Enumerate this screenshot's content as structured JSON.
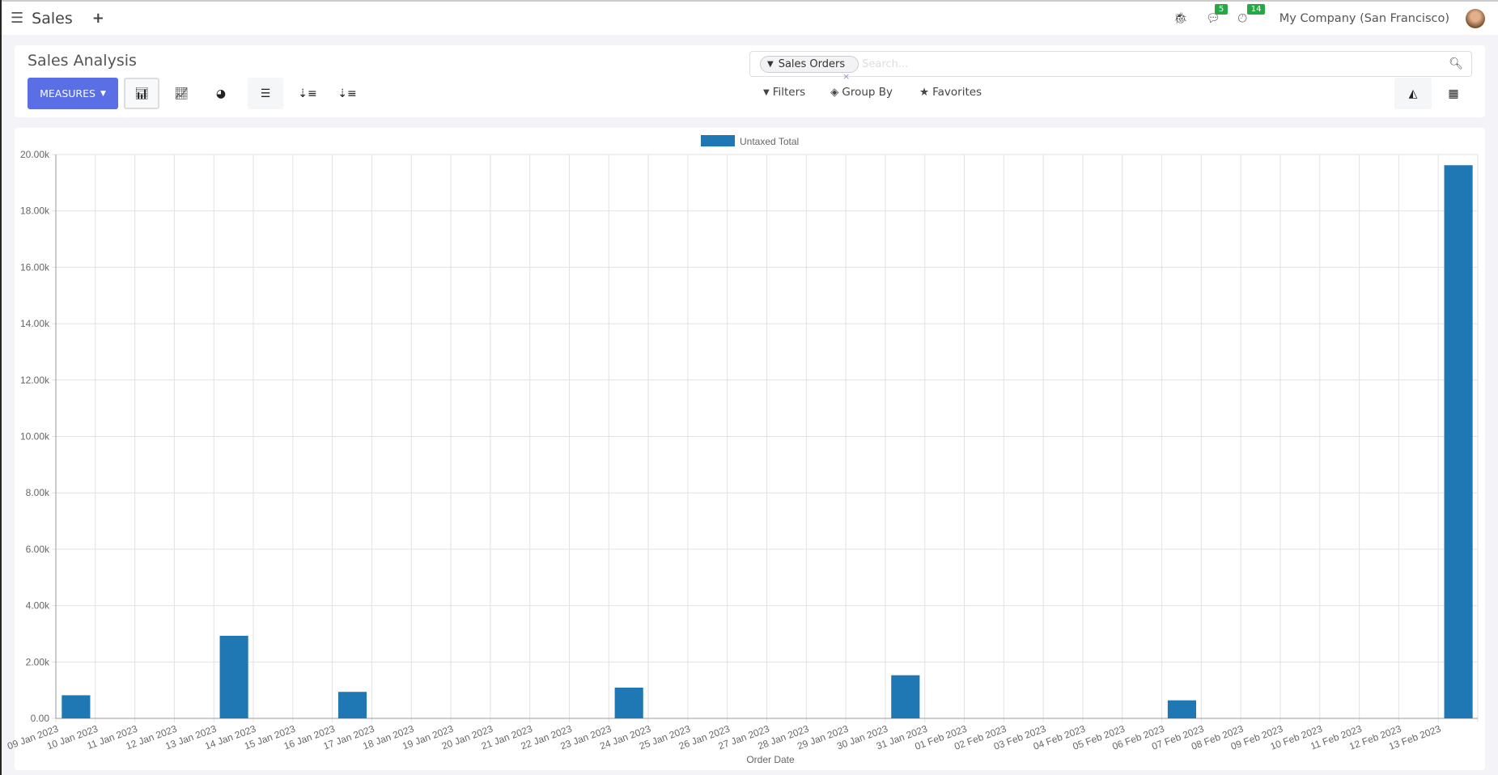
{
  "nav": {
    "app_title": "Sales",
    "messages_count": "5",
    "activities_count": "14",
    "company": "My Company (San Francisco)",
    "icons": [
      "menu-icon",
      "plus-icon",
      "bug-icon",
      "chat-icon",
      "clock-icon",
      "avatar"
    ]
  },
  "control_panel": {
    "title": "Sales Analysis",
    "measures_label": "MEASURES",
    "facet_label": "Sales Orders",
    "facet_remove": "×",
    "search_placeholder": "Search...",
    "filters_label": "Filters",
    "groupby_label": "Group By",
    "favorites_label": "Favorites",
    "active_chart": "bar",
    "active_view": "graph"
  },
  "colors": {
    "accent": "#5a6ee6",
    "bar": "#1f77b4",
    "badge": "#28a745"
  },
  "chart_data": {
    "type": "bar",
    "legend": [
      "Untaxed Total"
    ],
    "legend_position": "top",
    "xlabel": "Order Date",
    "ylabel": "",
    "ylim": [
      0,
      20000
    ],
    "yticks": [
      "0.00",
      "2.00k",
      "4.00k",
      "6.00k",
      "8.00k",
      "10.00k",
      "12.00k",
      "14.00k",
      "16.00k",
      "18.00k",
      "20.00k"
    ],
    "grid": true,
    "categories": [
      "09 Jan 2023",
      "10 Jan 2023",
      "11 Jan 2023",
      "12 Jan 2023",
      "13 Jan 2023",
      "14 Jan 2023",
      "15 Jan 2023",
      "16 Jan 2023",
      "17 Jan 2023",
      "18 Jan 2023",
      "19 Jan 2023",
      "20 Jan 2023",
      "21 Jan 2023",
      "22 Jan 2023",
      "23 Jan 2023",
      "24 Jan 2023",
      "25 Jan 2023",
      "26 Jan 2023",
      "27 Jan 2023",
      "28 Jan 2023",
      "29 Jan 2023",
      "30 Jan 2023",
      "31 Jan 2023",
      "01 Feb 2023",
      "02 Feb 2023",
      "03 Feb 2023",
      "04 Feb 2023",
      "05 Feb 2023",
      "06 Feb 2023",
      "07 Feb 2023",
      "08 Feb 2023",
      "09 Feb 2023",
      "10 Feb 2023",
      "11 Feb 2023",
      "12 Feb 2023",
      "13 Feb 2023"
    ],
    "series": [
      {
        "name": "Untaxed Total",
        "values": [
          820,
          0,
          0,
          0,
          2930,
          0,
          0,
          940,
          0,
          0,
          0,
          0,
          0,
          0,
          1090,
          0,
          0,
          0,
          0,
          0,
          0,
          1530,
          0,
          0,
          0,
          0,
          0,
          0,
          640,
          0,
          0,
          0,
          0,
          0,
          0,
          19620
        ]
      }
    ]
  }
}
